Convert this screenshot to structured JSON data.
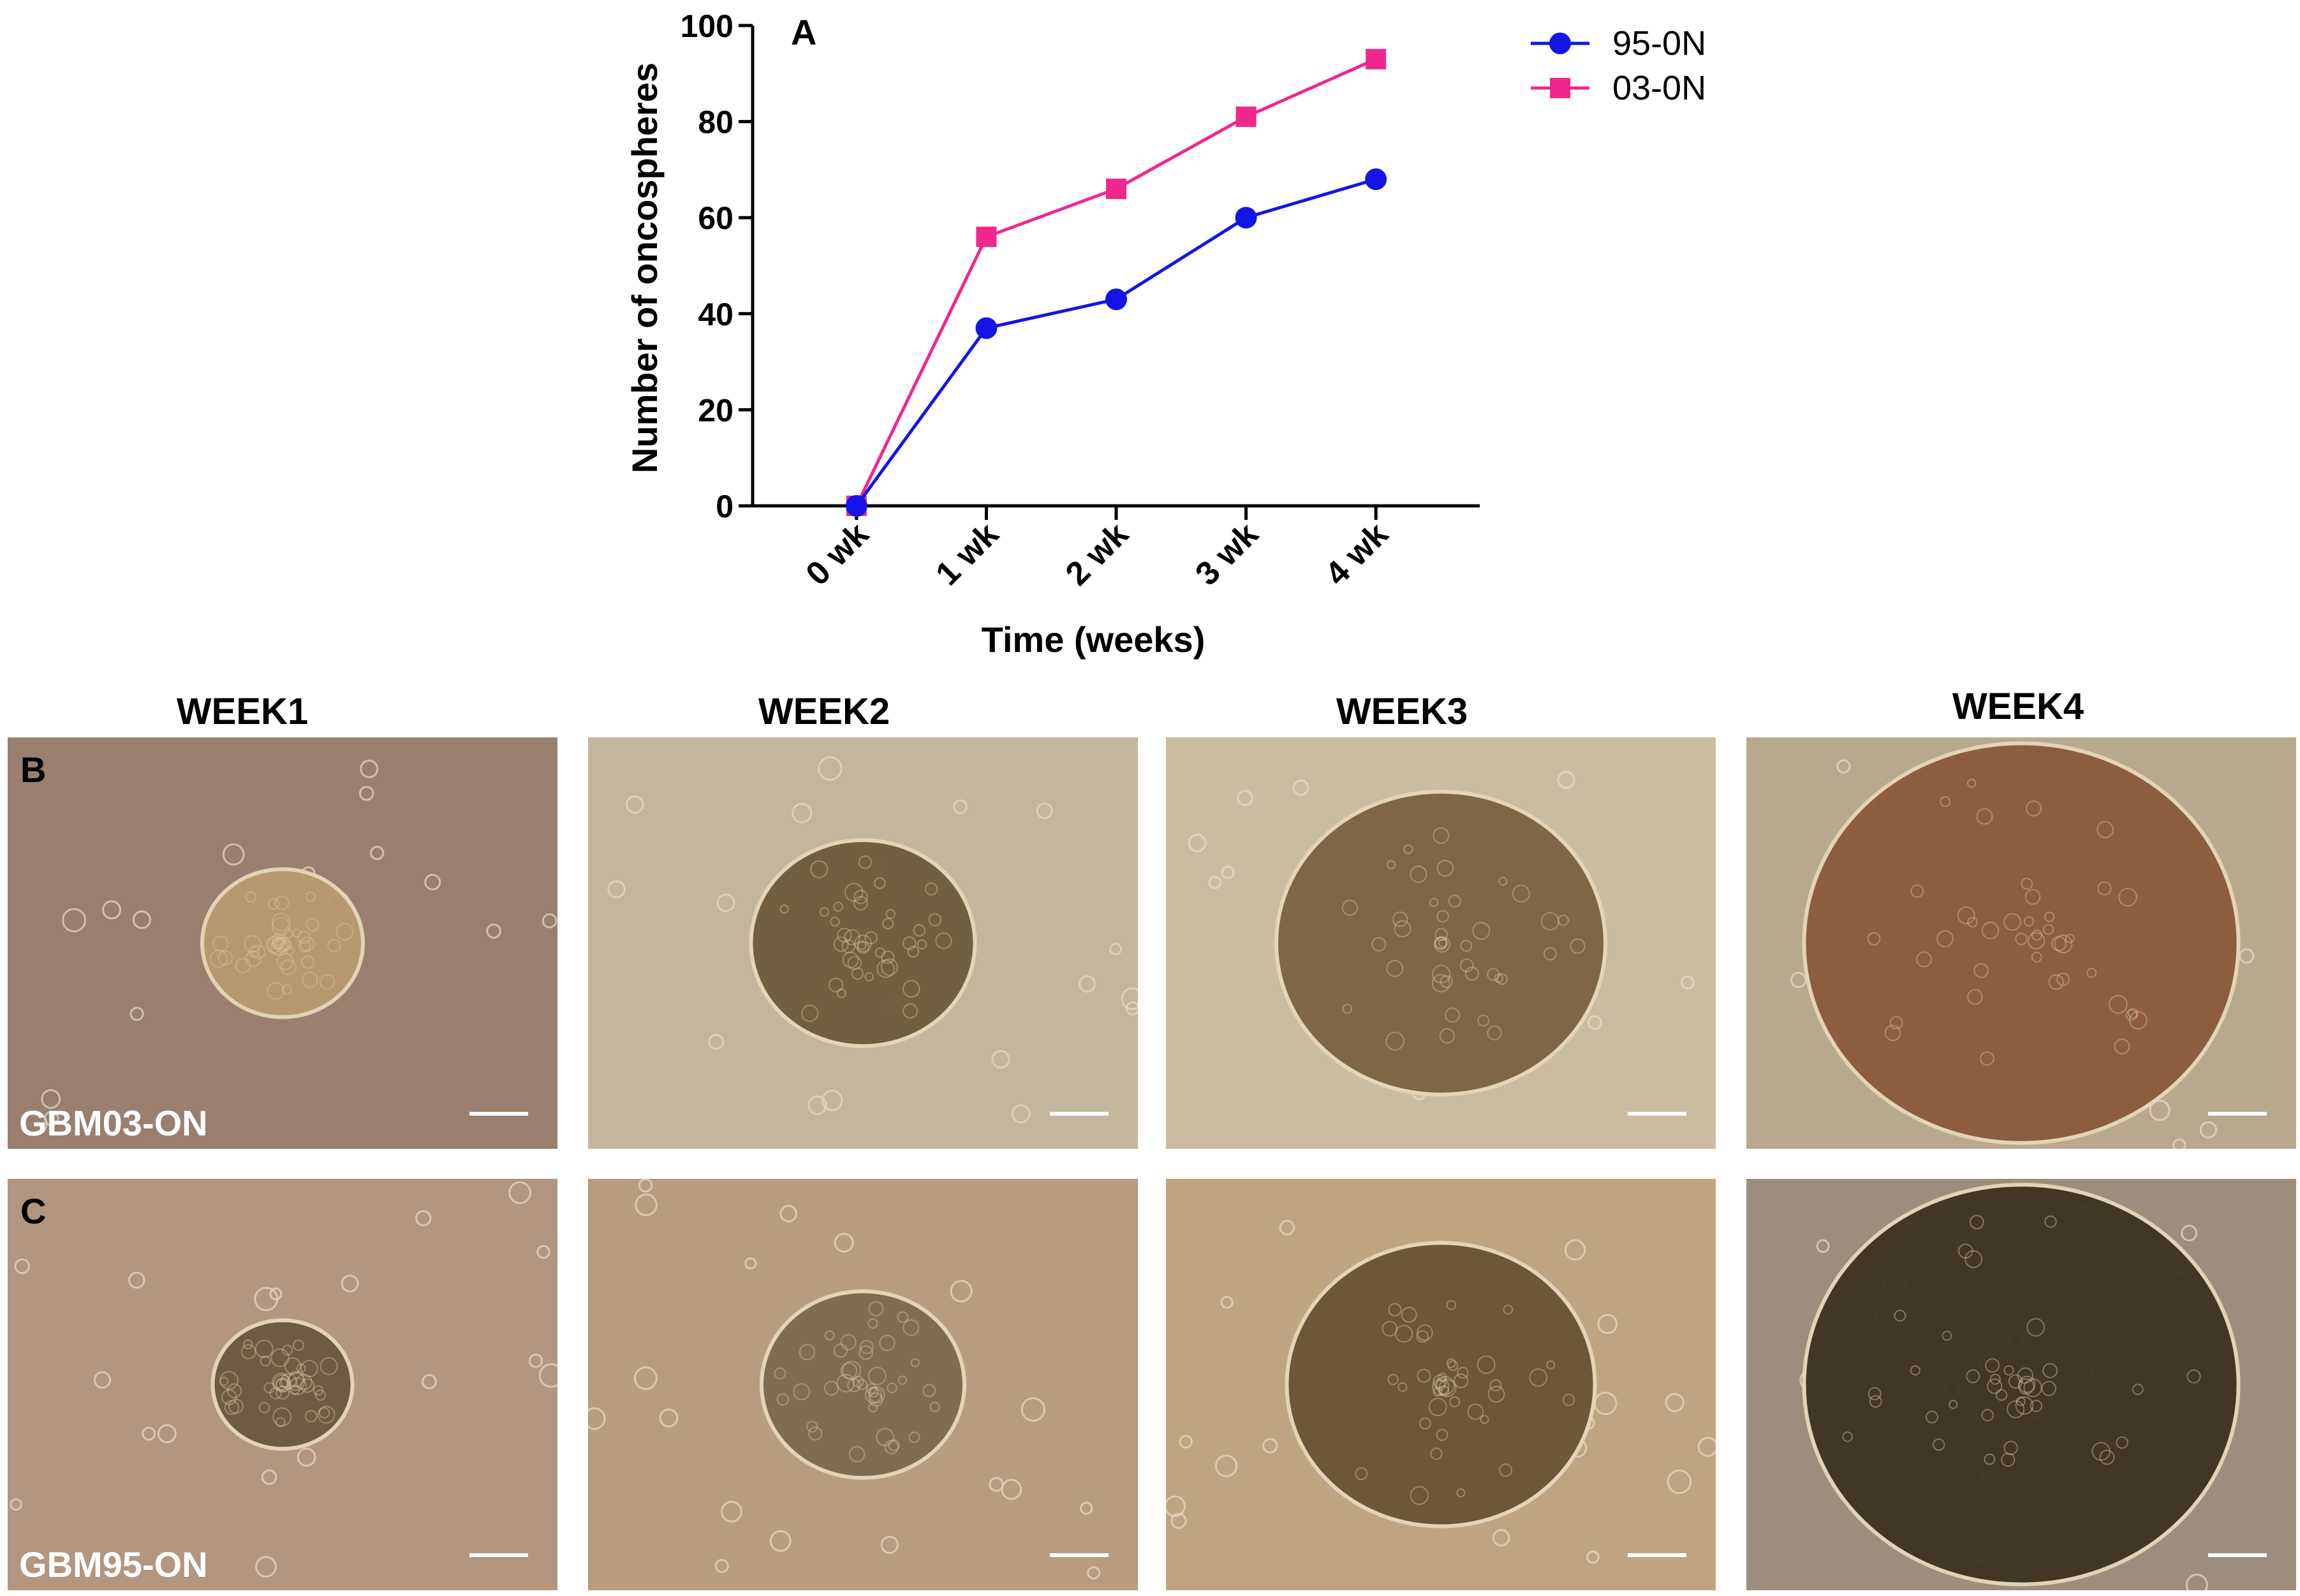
{
  "chart_data": {
    "type": "line",
    "panel_label": "A",
    "xlabel": "Time (weeks)",
    "ylabel": "Number of oncospheres",
    "categories": [
      "0 wk",
      "1 wk",
      "2 wk",
      "3 wk",
      "4 wk"
    ],
    "ylim": [
      0,
      100
    ],
    "yticks": [
      0,
      20,
      40,
      60,
      80,
      100
    ],
    "grid": false,
    "legend_placement": "top-right outside",
    "series": [
      {
        "name": "95-0N",
        "values": [
          0,
          37,
          43,
          60,
          68
        ],
        "color": "#1414e6",
        "marker": "circle"
      },
      {
        "name": "03-0N",
        "values": [
          0,
          56,
          66,
          81,
          93
        ],
        "color": "#f0288c",
        "marker": "square"
      }
    ]
  },
  "columns": [
    "WEEK1",
    "WEEK2",
    "WEEK3",
    "WEEK4"
  ],
  "rows": [
    {
      "letter": "B",
      "sample": "GBM03-ON"
    },
    {
      "letter": "C",
      "sample": "GBM95-ON"
    }
  ],
  "micrographs": [
    {
      "id": "b-week1",
      "background": "#9a7f6f",
      "sphere": "#b89a6e",
      "sphere_level": 0.2
    },
    {
      "id": "b-week2",
      "background": "#c4b59d",
      "sphere": "#6e5a3c",
      "sphere_level": 0.35
    },
    {
      "id": "b-week3",
      "background": "#cbbba1",
      "sphere": "#7a6242",
      "sphere_level": 0.6
    },
    {
      "id": "b-week4",
      "background": "#b8a98e",
      "sphere": "#8a5a3a",
      "sphere_level": 0.85
    },
    {
      "id": "c-week1",
      "background": "#b39680",
      "sphere": "#6c5840",
      "sphere_level": 0.15
    },
    {
      "id": "c-week2",
      "background": "#b89c80",
      "sphere": "#7e6a50",
      "sphere_level": 0.3
    },
    {
      "id": "c-week3",
      "background": "#bea57f",
      "sphere": "#6a5236",
      "sphere_level": 0.55
    },
    {
      "id": "c-week4",
      "background": "#9c8e7c",
      "sphere": "#3e3220",
      "sphere_level": 0.85
    }
  ]
}
